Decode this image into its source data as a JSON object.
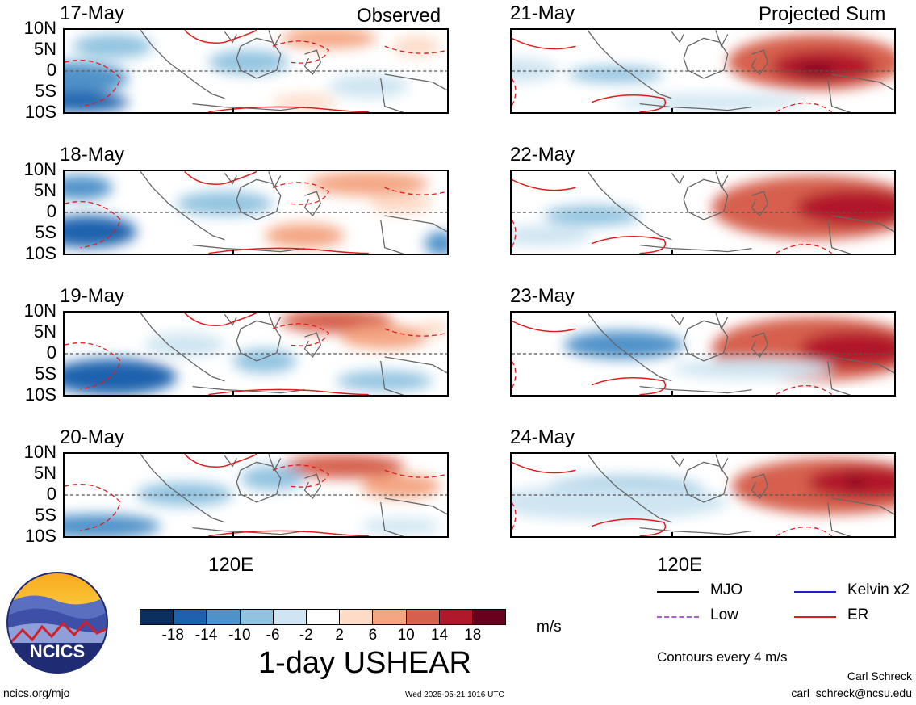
{
  "headers": {
    "observed": "Observed",
    "projected": "Projected Sum"
  },
  "panels": {
    "observed": [
      {
        "date": "17-May"
      },
      {
        "date": "18-May"
      },
      {
        "date": "19-May"
      },
      {
        "date": "20-May"
      }
    ],
    "projected": [
      {
        "date": "21-May"
      },
      {
        "date": "22-May"
      },
      {
        "date": "23-May"
      },
      {
        "date": "24-May"
      }
    ]
  },
  "axes": {
    "lat_ticks": [
      "10N",
      "5N",
      "0",
      "5S",
      "10S"
    ],
    "lon_label": "120E"
  },
  "colorbar": {
    "levels": [
      "-18",
      "-14",
      "-10",
      "-6",
      "-2",
      "2",
      "6",
      "10",
      "14",
      "18"
    ],
    "colors": [
      "#0b2f5e",
      "#1e62ad",
      "#4f92c9",
      "#91c3e0",
      "#cfe5f2",
      "#ffffff",
      "#fddbc7",
      "#f4a582",
      "#d6604d",
      "#b2182b",
      "#67001f"
    ],
    "units": "m/s",
    "title": "1-day USHEAR"
  },
  "legend": {
    "items": [
      {
        "label": "MJO",
        "color": "#000000",
        "style": "solid"
      },
      {
        "label": "Kelvin x2",
        "color": "#1f1fd9",
        "style": "solid"
      },
      {
        "label": "Low",
        "color": "#a45fe0",
        "style": "dashed"
      },
      {
        "label": "ER",
        "color": "#e31a1c",
        "style": "solid"
      }
    ],
    "contour_note": "Contours every 4 m/s"
  },
  "footer": {
    "site": "ncics.org/mjo",
    "timestamp": "Wed 2025-05-21 1016 UTC",
    "author": "Carl Schreck",
    "email": "carl_schreck@ncsu.edu"
  },
  "logo": {
    "text": "NCICS"
  }
}
